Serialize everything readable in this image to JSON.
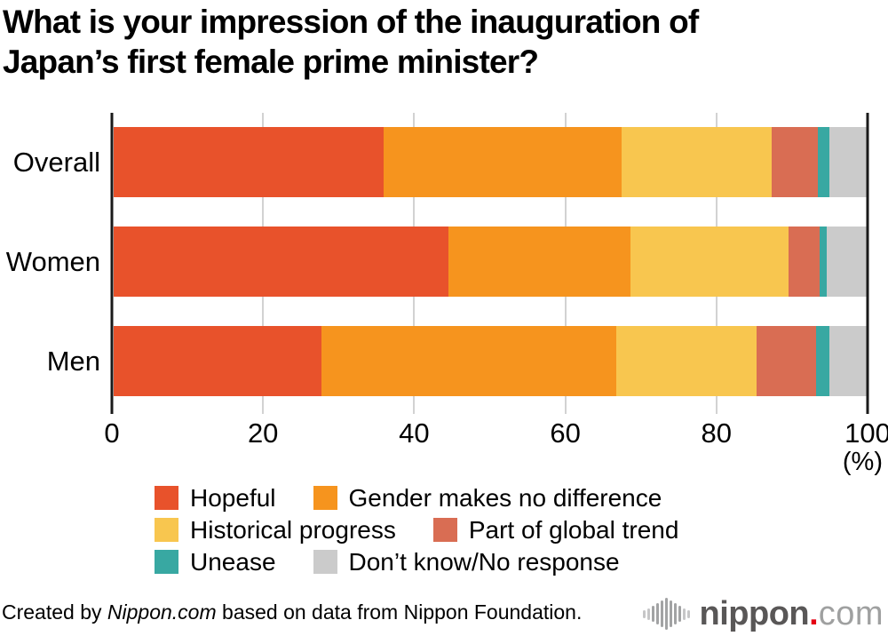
{
  "title": {
    "line1": "What is your impression of the inauguration of",
    "line2": "Japan’s first female prime minister?"
  },
  "chart_data": {
    "type": "bar",
    "orientation": "horizontal",
    "stacked": true,
    "title": "What is your impression of the inauguration of Japan’s first female prime minister?",
    "categories": [
      "Overall",
      "Women",
      "Men"
    ],
    "series": [
      {
        "name": "Hopeful",
        "color": "#e8522b",
        "values": [
          35.8,
          44.5,
          27.6
        ]
      },
      {
        "name": "Gender makes no difference",
        "color": "#f6941e",
        "values": [
          31.6,
          24.1,
          39.1
        ]
      },
      {
        "name": "Historical progress",
        "color": "#f8c64f",
        "values": [
          20.0,
          21.0,
          18.7
        ]
      },
      {
        "name": "Part of global trend",
        "color": "#d96d53",
        "values": [
          6.1,
          4.2,
          7.9
        ]
      },
      {
        "name": "Unease",
        "color": "#38a8a2",
        "values": [
          1.6,
          0.9,
          1.7
        ]
      },
      {
        "name": "Don’t know/No response",
        "color": "#cbcbcb",
        "values": [
          4.9,
          5.3,
          5.0
        ]
      }
    ],
    "xlim": [
      0,
      100
    ],
    "x_ticks": [
      0,
      20,
      40,
      60,
      80,
      100
    ],
    "x_unit_label": "(%)",
    "grid": true,
    "legend_position": "bottom",
    "legend_rows": [
      [
        "Hopeful",
        "Gender makes no difference"
      ],
      [
        "Historical progress",
        "Part of global trend"
      ],
      [
        "Unease",
        "Don’t know/No response"
      ]
    ]
  },
  "footer": {
    "credit_prefix": "Created by ",
    "credit_brand": "Nippon.com",
    "credit_suffix": " based on data from Nippon Foundation.",
    "logo": {
      "name": "nippon",
      "dot": ".",
      "tld": "com"
    }
  }
}
